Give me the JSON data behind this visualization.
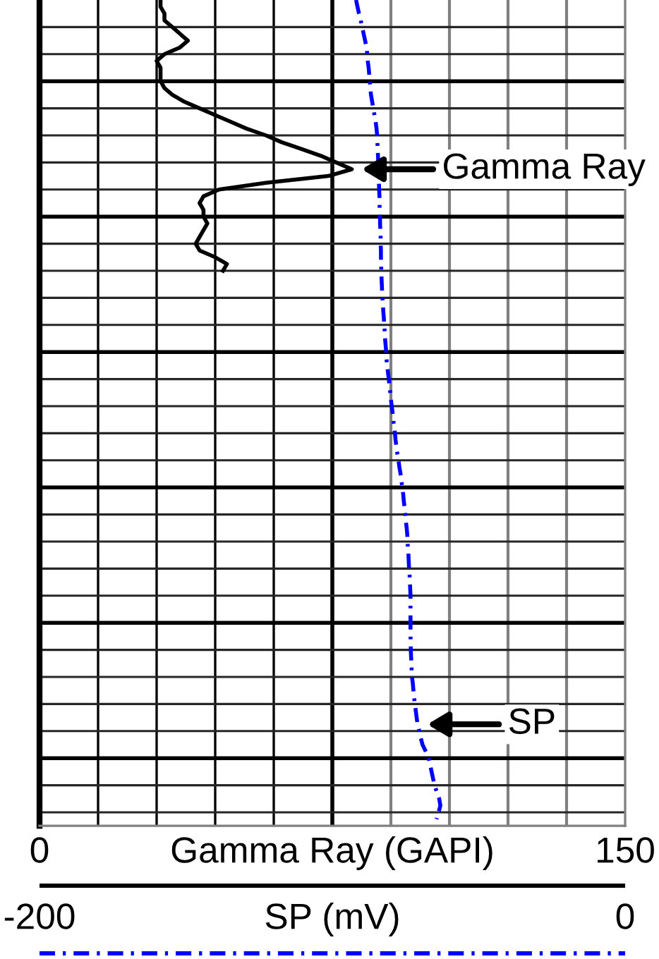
{
  "chart_data": {
    "type": "line",
    "orientation": "horizontal",
    "categories": [
      null,
      null,
      null,
      null,
      null,
      null,
      null,
      null,
      null,
      null,
      null,
      null,
      null,
      null,
      null,
      null,
      null,
      null,
      null,
      null,
      null,
      null,
      null,
      null,
      null,
      null,
      null,
      null,
      null,
      null,
      null,
      null,
      null,
      null,
      null,
      null,
      null,
      null,
      null,
      null,
      null,
      null,
      null,
      null,
      null,
      null,
      null,
      null,
      null,
      null,
      null,
      null,
      null,
      null,
      null,
      null,
      null,
      null,
      null,
      null,
      null,
      null,
      null,
      null,
      null,
      null,
      null,
      null,
      null,
      null,
      null,
      null,
      null,
      null,
      null,
      null,
      null,
      null,
      null,
      null,
      null,
      null,
      null,
      null,
      null,
      null,
      null,
      null,
      null,
      null,
      null,
      null,
      null,
      null,
      null,
      null,
      null,
      null,
      null,
      null,
      null,
      null,
      null,
      null,
      null,
      null,
      null,
      null,
      null,
      null,
      null,
      null,
      null,
      null,
      null,
      null,
      null,
      null,
      null,
      null,
      null,
      null
    ],
    "xlim": [
      0,
      150
    ],
    "xticks": [
      0,
      {
        "value": 15,
        "label": null
      },
      {
        "value": 30,
        "label": null
      },
      {
        "value": 45,
        "label": null
      },
      {
        "value": 60,
        "label": null
      },
      {
        "value": 75,
        "label": null
      },
      {
        "value": 90,
        "label": null
      },
      {
        "value": 105,
        "label": null
      },
      {
        "value": 120,
        "label": null
      },
      {
        "value": 135,
        "label": null
      },
      150
    ],
    "xlabel": "Gamma Ray (GAPI)",
    "x2lim": [
      -200,
      0
    ],
    "x2ticks": [
      -200,
      0
    ],
    "x2label": "SP (mV)",
    "grid": true,
    "legend": "right",
    "series": [
      {
        "name": "Gamma Ray",
        "color": "#000000",
        "line_style": "solid",
        "values": [
          31,
          31,
          32,
          32,
          34,
          36,
          38,
          36,
          32,
          30,
          31,
          31,
          31,
          32,
          34,
          37,
          41,
          45,
          49,
          53,
          58,
          62,
          67,
          72,
          76,
          80,
          74,
          58,
          46,
          42,
          41,
          42,
          42,
          43,
          42,
          41,
          40,
          41,
          45,
          48,
          47,
          null,
          null,
          null,
          null,
          null,
          null,
          null,
          null,
          null,
          null,
          null,
          null,
          null,
          null,
          null,
          null,
          null,
          null,
          null,
          null,
          null,
          null,
          null,
          null,
          null,
          null,
          null,
          null,
          null,
          null,
          null,
          null,
          null,
          null,
          null,
          null,
          null,
          null,
          null,
          null,
          null,
          null,
          null,
          null,
          null,
          null,
          null,
          null,
          null,
          null,
          null,
          null,
          null,
          null,
          null,
          null,
          null,
          null,
          null,
          null,
          null,
          null,
          null,
          null,
          null,
          null,
          null,
          null,
          null,
          null,
          null,
          null,
          null,
          null,
          null,
          null,
          null,
          null,
          null,
          null,
          null
        ]
      },
      {
        "name": "SP",
        "color": "#0000ff",
        "line_style": "dashdot",
        "axis": "x2",
        "values": [
          -91.9,
          -91.4,
          -90.9,
          -90.3,
          -89.8,
          -89.3,
          -88.8,
          -88.3,
          -88.1,
          -87.9,
          -87.6,
          -87.4,
          -87.2,
          -87.0,
          -86.8,
          -86.4,
          -86.0,
          -85.6,
          -85.2,
          -84.9,
          -84.7,
          -84.6,
          -84.5,
          -84.4,
          -84.3,
          -84.2,
          -84.1,
          -84.1,
          -84.0,
          -83.9,
          -83.9,
          -83.8,
          -83.7,
          -83.7,
          -83.6,
          -83.5,
          -83.5,
          -83.4,
          -83.4,
          -83.3,
          -83.3,
          -83.2,
          -83.1,
          -83.0,
          -82.9,
          -82.7,
          -82.6,
          -82.4,
          -82.3,
          -82.1,
          -82.0,
          -81.8,
          -81.6,
          -81.5,
          -81.3,
          -81.0,
          -80.7,
          -80.5,
          -80.2,
          -80.0,
          -79.7,
          -79.4,
          -79.2,
          -78.9,
          -78.6,
          -78.4,
          -78.1,
          -77.8,
          -77.4,
          -77.1,
          -76.7,
          -76.4,
          -76.1,
          -75.8,
          -75.6,
          -75.3,
          -75.1,
          -74.9,
          -74.6,
          -74.4,
          -74.3,
          -74.2,
          -74.0,
          -73.9,
          -73.8,
          -73.6,
          -73.5,
          -73.4,
          -73.3,
          -73.3,
          -73.3,
          -73.3,
          -73.3,
          -73.3,
          -73.3,
          -73.2,
          -73.2,
          -73.1,
          -73.0,
          -72.9,
          -72.8,
          -72.5,
          -72.3,
          -72.1,
          -71.8,
          -71.5,
          -71.2,
          -70.9,
          -70.3,
          -69.8,
          -69.2,
          -68.1,
          -67.1,
          -66.6,
          -66.1,
          -65.6,
          -65.1,
          -64.3,
          -63.5,
          -63.1,
          -63.7,
          -64.4
        ]
      }
    ]
  }
}
